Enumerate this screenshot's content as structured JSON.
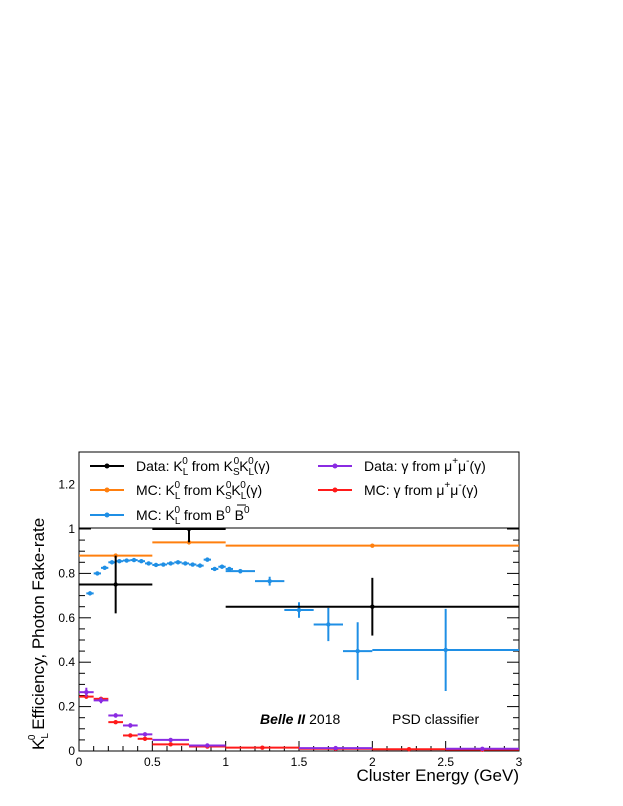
{
  "chart_data": {
    "type": "scatter",
    "xlabel": "Cluster Energy (GeV)",
    "ylabel": "K_L^0 Efficiency, Photon Fake-rate",
    "xlim": [
      0,
      3
    ],
    "ylim": [
      0,
      1.0
    ],
    "x_ticks": [
      "0",
      "0.5",
      "1",
      "1.5",
      "2",
      "2.5",
      "3"
    ],
    "y_ticks": [
      "0",
      "0.2",
      "0.4",
      "0.6",
      "0.8",
      "1",
      "1.2"
    ],
    "grid": false,
    "legend_placement": "top",
    "annotation": {
      "experiment": "Belle II",
      "year": "2018",
      "method": "PSD classifier"
    },
    "series": [
      {
        "name": "Data: K_L^0 from K_S^0 K_L^0(γ)",
        "color": "#000000",
        "points": [
          {
            "x": 0.25,
            "xerr": 0.25,
            "y": 0.75,
            "yerr": 0.13
          },
          {
            "x": 0.75,
            "xerr": 0.25,
            "y": 1.0,
            "yerr": 0.06
          },
          {
            "x": 2.0,
            "xerr": 1.0,
            "y": 0.65,
            "yerr": 0.13
          }
        ]
      },
      {
        "name": "MC: K_L^0 from K_S^0 K_L^0(γ)",
        "color": "#ff7f0e",
        "points": [
          {
            "x": 0.25,
            "xerr": 0.25,
            "y": 0.88,
            "yerr": 0.01
          },
          {
            "x": 0.75,
            "xerr": 0.25,
            "y": 0.94,
            "yerr": 0.01
          },
          {
            "x": 2.0,
            "xerr": 1.0,
            "y": 0.925,
            "yerr": 0.005
          }
        ]
      },
      {
        "name": "MC: K_L^0 from B^0 B̄^0",
        "color": "#1f8fe5",
        "points": [
          {
            "x": 0.075,
            "xerr": 0.025,
            "y": 0.71,
            "yerr": 0.005
          },
          {
            "x": 0.125,
            "xerr": 0.025,
            "y": 0.8,
            "yerr": 0.005
          },
          {
            "x": 0.175,
            "xerr": 0.025,
            "y": 0.825,
            "yerr": 0.005
          },
          {
            "x": 0.225,
            "xerr": 0.025,
            "y": 0.85,
            "yerr": 0.005
          },
          {
            "x": 0.275,
            "xerr": 0.025,
            "y": 0.855,
            "yerr": 0.005
          },
          {
            "x": 0.325,
            "xerr": 0.025,
            "y": 0.858,
            "yerr": 0.005
          },
          {
            "x": 0.375,
            "xerr": 0.025,
            "y": 0.86,
            "yerr": 0.005
          },
          {
            "x": 0.425,
            "xerr": 0.025,
            "y": 0.855,
            "yerr": 0.005
          },
          {
            "x": 0.475,
            "xerr": 0.025,
            "y": 0.845,
            "yerr": 0.005
          },
          {
            "x": 0.525,
            "xerr": 0.025,
            "y": 0.838,
            "yerr": 0.005
          },
          {
            "x": 0.575,
            "xerr": 0.025,
            "y": 0.84,
            "yerr": 0.005
          },
          {
            "x": 0.625,
            "xerr": 0.025,
            "y": 0.845,
            "yerr": 0.005
          },
          {
            "x": 0.675,
            "xerr": 0.025,
            "y": 0.85,
            "yerr": 0.005
          },
          {
            "x": 0.725,
            "xerr": 0.025,
            "y": 0.845,
            "yerr": 0.005
          },
          {
            "x": 0.775,
            "xerr": 0.025,
            "y": 0.84,
            "yerr": 0.005
          },
          {
            "x": 0.825,
            "xerr": 0.025,
            "y": 0.835,
            "yerr": 0.005
          },
          {
            "x": 0.875,
            "xerr": 0.025,
            "y": 0.862,
            "yerr": 0.008
          },
          {
            "x": 0.925,
            "xerr": 0.025,
            "y": 0.82,
            "yerr": 0.008
          },
          {
            "x": 0.975,
            "xerr": 0.025,
            "y": 0.83,
            "yerr": 0.008
          },
          {
            "x": 1.025,
            "xerr": 0.025,
            "y": 0.82,
            "yerr": 0.008
          },
          {
            "x": 1.1,
            "xerr": 0.1,
            "y": 0.81,
            "yerr": 0.01
          },
          {
            "x": 1.3,
            "xerr": 0.1,
            "y": 0.765,
            "yerr": 0.02
          },
          {
            "x": 1.5,
            "xerr": 0.1,
            "y": 0.635,
            "yerr": 0.035
          },
          {
            "x": 1.7,
            "xerr": 0.1,
            "y": 0.57,
            "yerr": 0.075
          },
          {
            "x": 1.9,
            "xerr": 0.1,
            "y": 0.45,
            "yerr": 0.13
          },
          {
            "x": 2.5,
            "xerr": 0.5,
            "y": 0.455,
            "yerr": 0.185
          }
        ]
      },
      {
        "name": "Data: γ from μ⁺μ⁻(γ)",
        "color": "#8a2be2",
        "points": [
          {
            "x": 0.05,
            "xerr": 0.05,
            "y": 0.265,
            "yerr": 0.02
          },
          {
            "x": 0.15,
            "xerr": 0.05,
            "y": 0.228,
            "yerr": 0.013
          },
          {
            "x": 0.25,
            "xerr": 0.05,
            "y": 0.16,
            "yerr": 0.01
          },
          {
            "x": 0.35,
            "xerr": 0.05,
            "y": 0.115,
            "yerr": 0.01
          },
          {
            "x": 0.45,
            "xerr": 0.05,
            "y": 0.075,
            "yerr": 0.008
          },
          {
            "x": 0.625,
            "xerr": 0.125,
            "y": 0.05,
            "yerr": 0.005
          },
          {
            "x": 0.875,
            "xerr": 0.125,
            "y": 0.025,
            "yerr": 0.004
          },
          {
            "x": 1.75,
            "xerr": 0.25,
            "y": 0.013,
            "yerr": 0.003
          },
          {
            "x": 2.75,
            "xerr": 0.25,
            "y": 0.01,
            "yerr": 0.003
          }
        ]
      },
      {
        "name": "MC: γ from μ⁺μ⁻(γ)",
        "color": "#ff1a1a",
        "points": [
          {
            "x": 0.05,
            "xerr": 0.05,
            "y": 0.245,
            "yerr": 0.01
          },
          {
            "x": 0.15,
            "xerr": 0.05,
            "y": 0.235,
            "yerr": 0.008
          },
          {
            "x": 0.25,
            "xerr": 0.05,
            "y": 0.13,
            "yerr": 0.006
          },
          {
            "x": 0.35,
            "xerr": 0.05,
            "y": 0.07,
            "yerr": 0.005
          },
          {
            "x": 0.45,
            "xerr": 0.05,
            "y": 0.055,
            "yerr": 0.004
          },
          {
            "x": 0.625,
            "xerr": 0.125,
            "y": 0.03,
            "yerr": 0.003
          },
          {
            "x": 0.875,
            "xerr": 0.125,
            "y": 0.02,
            "yerr": 0.003
          },
          {
            "x": 1.25,
            "xerr": 0.25,
            "y": 0.015,
            "yerr": 0.002
          },
          {
            "x": 1.75,
            "xerr": 0.25,
            "y": 0.01,
            "yerr": 0.002
          },
          {
            "x": 2.25,
            "xerr": 0.25,
            "y": 0.008,
            "yerr": 0.002
          },
          {
            "x": 2.75,
            "xerr": 0.25,
            "y": 0.006,
            "yerr": 0.002
          }
        ]
      }
    ]
  }
}
